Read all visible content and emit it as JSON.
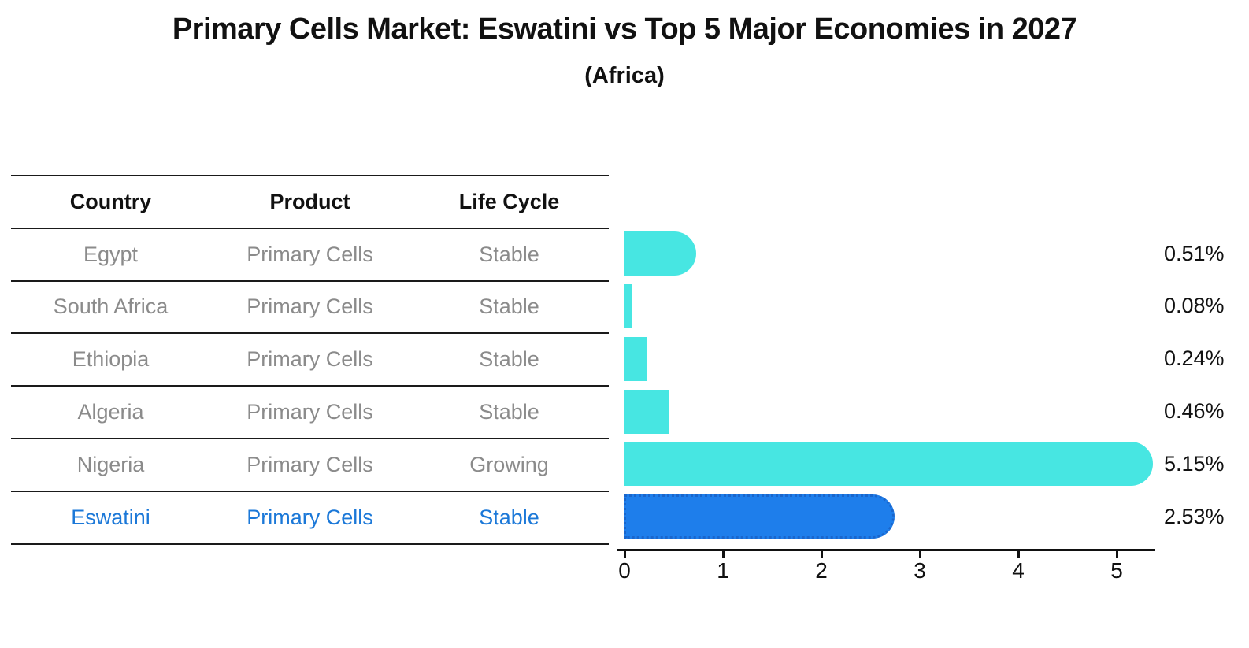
{
  "title": "Primary Cells Market: Eswatini vs Top 5 Major Economies in 2027",
  "subtitle": "(Africa)",
  "table": {
    "headers": [
      "Country",
      "Product",
      "Life Cycle"
    ],
    "rows": [
      {
        "country": "Egypt",
        "product": "Primary Cells",
        "life_cycle": "Stable",
        "highlighted": false
      },
      {
        "country": "South Africa",
        "product": "Primary Cells",
        "life_cycle": "Stable",
        "highlighted": false
      },
      {
        "country": "Ethiopia",
        "product": "Primary Cells",
        "life_cycle": "Stable",
        "highlighted": false
      },
      {
        "country": "Algeria",
        "product": "Primary Cells",
        "life_cycle": "Stable",
        "highlighted": false
      },
      {
        "country": "Nigeria",
        "product": "Primary Cells",
        "life_cycle": "Growing",
        "highlighted": false
      },
      {
        "country": "Eswatini",
        "product": "Primary Cells",
        "life_cycle": "Stable",
        "highlighted": true
      }
    ]
  },
  "chart_data": {
    "type": "bar",
    "orientation": "horizontal",
    "title": "Primary Cells Market: Eswatini vs Top 5 Major Economies in 2027",
    "subtitle": "(Africa)",
    "categories": [
      "Egypt",
      "South Africa",
      "Ethiopia",
      "Algeria",
      "Nigeria",
      "Eswatini"
    ],
    "values": [
      0.51,
      0.08,
      0.24,
      0.46,
      5.15,
      2.53
    ],
    "value_labels": [
      "0.51%",
      "0.08%",
      "0.24%",
      "0.46%",
      "5.15%",
      "2.53%"
    ],
    "unit": "%",
    "xlim": [
      0,
      5.4
    ],
    "x_ticks": [
      0,
      1,
      2,
      3,
      4,
      5
    ],
    "grid": false,
    "legend": false,
    "highlighted_category": "Eswatini",
    "bar_color": "#47e6e2",
    "highlight_bar_color": "#1e7eeb",
    "highlight_border_color": "#1a66cc",
    "label_color": "#111111",
    "row_text_color": "#8b8b8b",
    "highlight_text_color": "#1b78d8"
  }
}
